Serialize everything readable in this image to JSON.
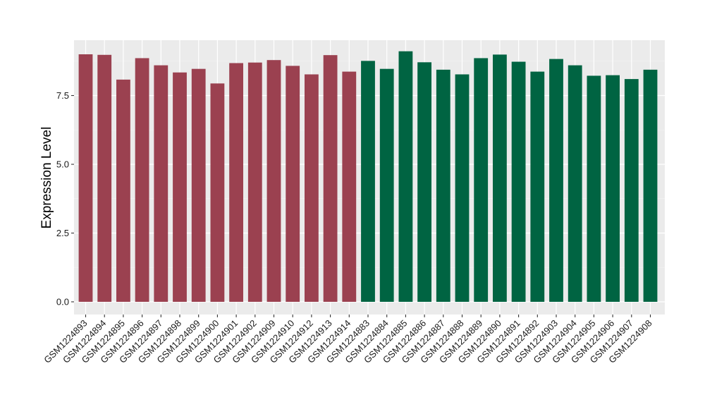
{
  "chart_data": {
    "type": "bar",
    "title": "",
    "xlabel": "",
    "ylabel": "Expression Level",
    "ylim": [
      0,
      9.35
    ],
    "yticks": [
      0.0,
      2.5,
      5.0,
      7.5
    ],
    "ytick_labels": [
      "0.0",
      "2.5",
      "5.0",
      "7.5"
    ],
    "grid": true,
    "legend": "none",
    "colors": {
      "group_1": "#9b4150",
      "group_2": "#006442",
      "panel_bg": "#ebebeb",
      "grid_major": "#ffffff",
      "grid_minor": "#f4f4f4"
    },
    "categories": [
      "GSM1224893",
      "GSM1224894",
      "GSM1224895",
      "GSM1224896",
      "GSM1224897",
      "GSM1224898",
      "GSM1224899",
      "GSM1224900",
      "GSM1224901",
      "GSM1224902",
      "GSM1224909",
      "GSM1224910",
      "GSM1224912",
      "GSM1224913",
      "GSM1224914",
      "GSM1224883",
      "GSM1224884",
      "GSM1224885",
      "GSM1224886",
      "GSM1224887",
      "GSM1224888",
      "GSM1224889",
      "GSM1224890",
      "GSM1224891",
      "GSM1224892",
      "GSM1224903",
      "GSM1224904",
      "GSM1224905",
      "GSM1224906",
      "GSM1224907",
      "GSM1224908"
    ],
    "values": [
      9.0,
      8.98,
      8.08,
      8.86,
      8.6,
      8.34,
      8.47,
      7.94,
      8.68,
      8.7,
      8.79,
      8.58,
      8.27,
      8.97,
      8.37,
      8.76,
      8.47,
      9.11,
      8.71,
      8.44,
      8.27,
      8.86,
      8.99,
      8.73,
      8.37,
      8.83,
      8.6,
      8.22,
      8.24,
      8.1,
      8.44
    ],
    "groups": [
      1,
      1,
      1,
      1,
      1,
      1,
      1,
      1,
      1,
      1,
      1,
      1,
      1,
      1,
      1,
      2,
      2,
      2,
      2,
      2,
      2,
      2,
      2,
      2,
      2,
      2,
      2,
      2,
      2,
      2,
      2
    ]
  }
}
